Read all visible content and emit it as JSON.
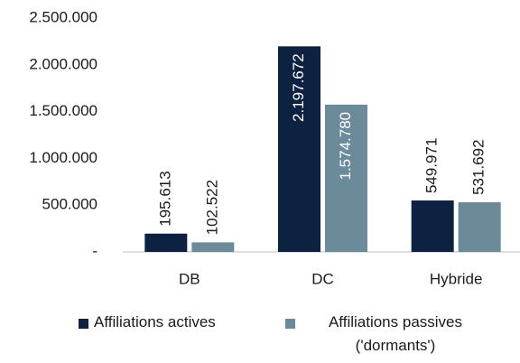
{
  "chart_data": {
    "type": "bar",
    "categories": [
      "DB",
      "DC",
      "Hybride"
    ],
    "series": [
      {
        "name": "Affiliations actives",
        "color": "#0d2240",
        "values": [
          195613,
          2197672,
          549971
        ],
        "value_labels": [
          "195.613",
          "2.197.672",
          "549.971"
        ]
      },
      {
        "name": "Affiliations passives ('dormants')",
        "color": "#6b8a9a",
        "values": [
          102522,
          1574780,
          531692
        ],
        "value_labels": [
          "102.522",
          "1.574.780",
          "531.692"
        ]
      }
    ],
    "ylim": [
      0,
      2500000
    ],
    "yticks": [
      {
        "value": 0,
        "label": "-"
      },
      {
        "value": 500000,
        "label": "500.000"
      },
      {
        "value": 1000000,
        "label": "1.000.000"
      },
      {
        "value": 1500000,
        "label": "1.500.000"
      },
      {
        "value": 2000000,
        "label": "2.000.000"
      },
      {
        "value": 2500000,
        "label": "2.500.000"
      }
    ],
    "grid": false,
    "legend": "bottom"
  }
}
